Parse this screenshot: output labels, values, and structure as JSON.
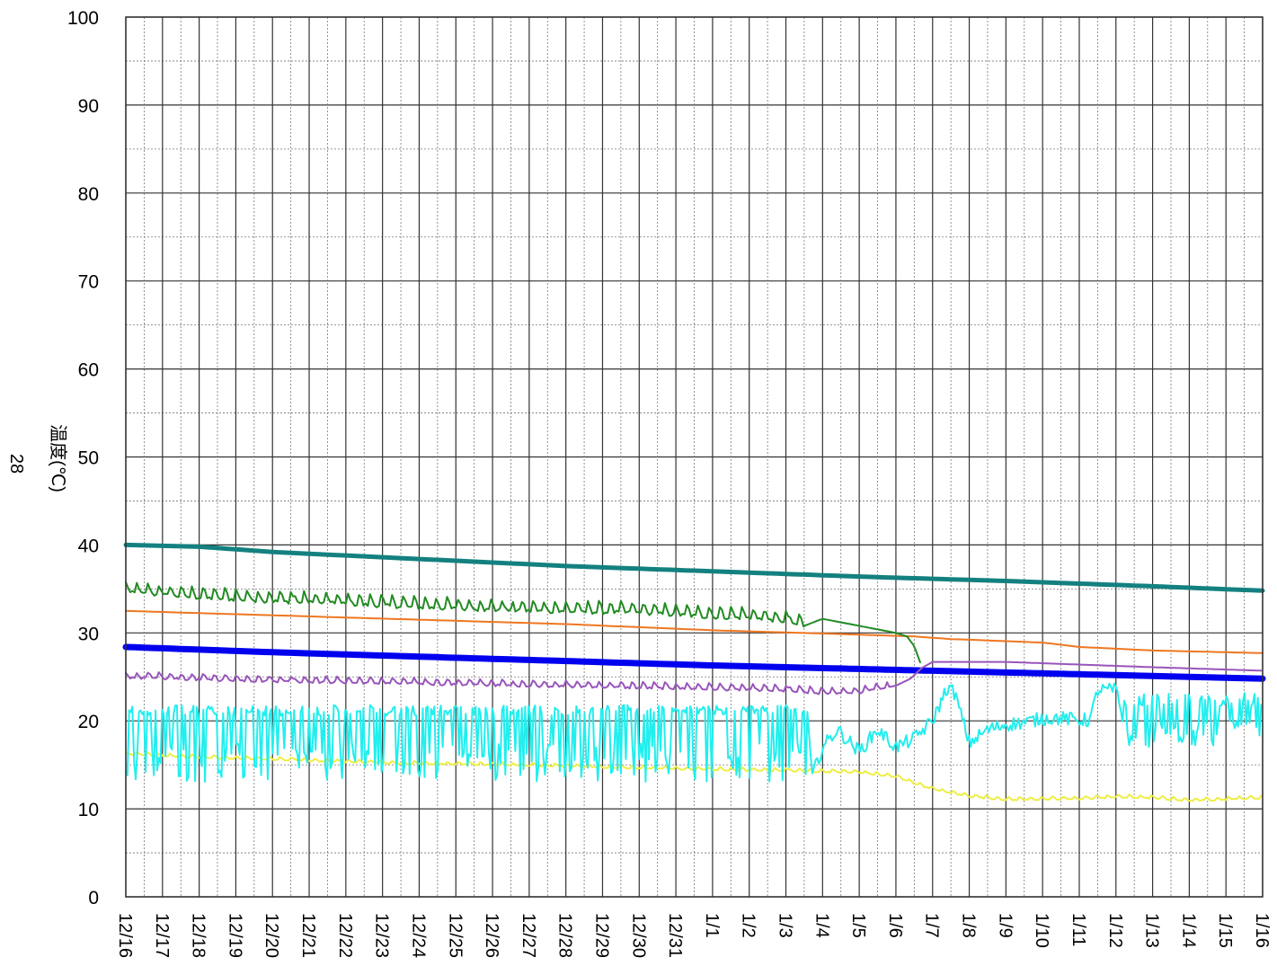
{
  "chart_data": {
    "type": "line",
    "side_label": "28",
    "ylabel": "温度(℃)",
    "xlabel": "",
    "ylim": [
      0,
      100
    ],
    "y_ticks": [
      0,
      10,
      20,
      30,
      40,
      50,
      60,
      70,
      80,
      90,
      100
    ],
    "y_minor_step": 5,
    "x_minor_per_day": 2,
    "categories": [
      "12/16",
      "12/17",
      "12/18",
      "12/19",
      "12/20",
      "12/21",
      "12/22",
      "12/23",
      "12/24",
      "12/25",
      "12/26",
      "12/27",
      "12/28",
      "12/29",
      "12/30",
      "12/31",
      "1/1",
      "1/2",
      "1/3",
      "1/4",
      "1/5",
      "1/6",
      "1/7",
      "1/8",
      "1/9",
      "1/10",
      "1/11",
      "1/12",
      "1/13",
      "1/14",
      "1/15",
      "1/16"
    ],
    "grid": true,
    "legend": "none",
    "series": [
      {
        "color": "#148080",
        "width": 5,
        "style": "smooth",
        "x": [
          0,
          2,
          4,
          8,
          12,
          16,
          20,
          24,
          28,
          31
        ],
        "y": [
          40.0,
          39.8,
          39.2,
          38.4,
          37.6,
          37.0,
          36.4,
          35.9,
          35.3,
          34.8
        ]
      },
      {
        "color": "#ee7722",
        "width": 2,
        "style": "smooth",
        "x": [
          0,
          4,
          8,
          12,
          16,
          20,
          21.5,
          22.5,
          25,
          26,
          28,
          31
        ],
        "y": [
          32.5,
          32.0,
          31.5,
          31.0,
          30.3,
          29.8,
          29.6,
          29.3,
          28.9,
          28.4,
          28.0,
          27.7
        ]
      },
      {
        "color": "#0000ee",
        "width": 7,
        "style": "smooth",
        "x": [
          0,
          4,
          8,
          12,
          16,
          20,
          24,
          28,
          31
        ],
        "y": [
          28.4,
          27.8,
          27.3,
          26.8,
          26.3,
          25.9,
          25.5,
          25.1,
          24.8
        ]
      },
      {
        "color": "#228b22",
        "width": 2,
        "style": "noisy",
        "x": [
          0,
          2,
          4,
          6,
          8,
          10,
          12,
          14,
          16,
          17,
          18,
          18.5,
          19,
          20,
          21,
          21.3,
          21.5,
          21.7
        ],
        "y": [
          34.6,
          34.0,
          33.6,
          33.3,
          32.9,
          32.6,
          32.4,
          32.3,
          31.8,
          31.7,
          31.2,
          30.8,
          31.6,
          30.8,
          30.0,
          29.6,
          28.5,
          26.2
        ],
        "amp": 1.1,
        "amp_until": 18.5
      },
      {
        "color": "#9955bb",
        "width": 2,
        "style": "noisy",
        "x": [
          0,
          4,
          8,
          12,
          16,
          18,
          19,
          20,
          21,
          21.4,
          21.7,
          22,
          24,
          26,
          28,
          31
        ],
        "y": [
          24.9,
          24.5,
          24.2,
          23.9,
          23.6,
          23.4,
          23.1,
          23.2,
          24.0,
          24.8,
          26.0,
          26.7,
          26.7,
          26.4,
          26.1,
          25.7
        ],
        "amp": 0.6,
        "amp_until": 20.8
      },
      {
        "color": "#eeee44",
        "width": 2,
        "style": "noisy",
        "x": [
          0,
          2,
          4,
          6,
          8,
          10,
          12,
          14,
          16,
          18,
          20,
          21,
          21.7,
          22.2,
          23,
          24,
          26,
          27,
          28,
          29,
          31
        ],
        "y": [
          16.2,
          15.8,
          15.6,
          15.3,
          15.1,
          15.0,
          14.8,
          14.6,
          14.4,
          14.3,
          14.1,
          13.6,
          12.6,
          12.0,
          11.4,
          11.0,
          11.1,
          11.3,
          11.2,
          10.9,
          11.2
        ],
        "amp": 0.3,
        "amp_until": 31
      },
      {
        "color": "#22eeee",
        "width": 2,
        "style": "spiky",
        "x": [
          0,
          18.6,
          18.7,
          19,
          19.4,
          20,
          20.5,
          21,
          21.5,
          22,
          22.4,
          22.6,
          23,
          23.5,
          24,
          24.5,
          25,
          25.5,
          26,
          26.3,
          26.5,
          27,
          27.2,
          27.4,
          31
        ],
        "y": [
          20.5,
          20.5,
          13.5,
          17.0,
          19.0,
          16.5,
          19.0,
          17.0,
          18.0,
          20.0,
          23.8,
          23.2,
          17.5,
          19.0,
          19.6,
          19.8,
          20.3,
          20.3,
          20.1,
          20.1,
          23.5,
          23.5,
          20.0,
          20.0,
          20.0
        ],
        "spike_until": 18.6,
        "spike_bottom": 13.0,
        "spike_top": 21.8,
        "spike2_from": 27.2,
        "spike2_top": 23.2,
        "spike2_bottom": 17.0
      }
    ]
  }
}
